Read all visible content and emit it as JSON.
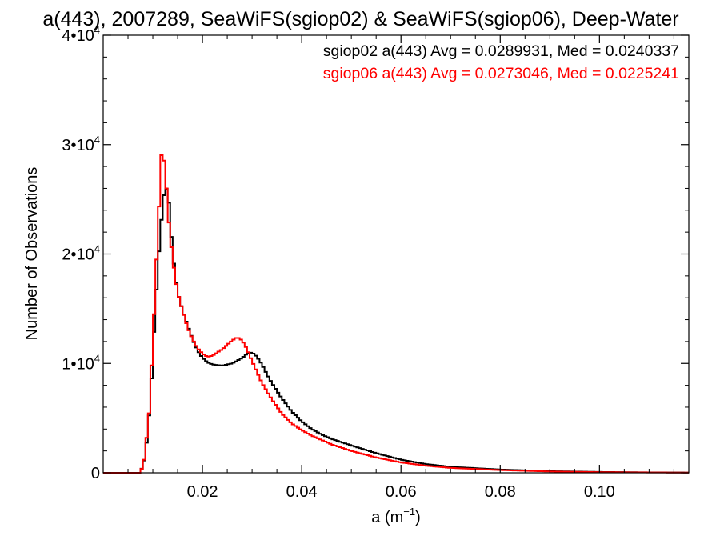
{
  "chart_data": {
    "type": "line",
    "title": "a(443), 2007289, SeaWiFS(sgiop02) & SeaWiFS(sgiop06), Deep-Water",
    "xlabel": {
      "base": "a (m",
      "exp": "−1",
      "close": ")"
    },
    "ylabel": "Number of Observations",
    "xlim": [
      0.0,
      0.118
    ],
    "ylim": [
      0,
      40000
    ],
    "x_ticks": [
      {
        "value": 0.02,
        "label": "0.02"
      },
      {
        "value": 0.04,
        "label": "0.04"
      },
      {
        "value": 0.06,
        "label": "0.06"
      },
      {
        "value": 0.08,
        "label": "0.08"
      },
      {
        "value": 0.1,
        "label": "0.10"
      }
    ],
    "y_ticks": [
      {
        "value": 0,
        "label": "0",
        "mant": "",
        "exp": ""
      },
      {
        "value": 10000,
        "label": "",
        "mant": "1•10",
        "exp": "4"
      },
      {
        "value": 20000,
        "label": "",
        "mant": "2•10",
        "exp": "4"
      },
      {
        "value": 30000,
        "label": "",
        "mant": "3•10",
        "exp": "4"
      },
      {
        "value": 40000,
        "label": "",
        "mant": "4•10",
        "exp": "4"
      }
    ],
    "legend_placement": "top-right",
    "series": [
      {
        "name": "sgiop02",
        "legend": "sgiop02 a(443) Avg = 0.0289931, Med = 0.0240337",
        "color": "#000000",
        "points": [
          [
            0.0,
            0
          ],
          [
            0.0075,
            0
          ],
          [
            0.0085,
            1500
          ],
          [
            0.0095,
            6500
          ],
          [
            0.0105,
            15000
          ],
          [
            0.0115,
            22000
          ],
          [
            0.0125,
            26500
          ],
          [
            0.0132,
            25000
          ],
          [
            0.014,
            20000
          ],
          [
            0.015,
            16500
          ],
          [
            0.016,
            14800
          ],
          [
            0.017,
            13500
          ],
          [
            0.018,
            12200
          ],
          [
            0.019,
            11200
          ],
          [
            0.02,
            10500
          ],
          [
            0.021,
            10100
          ],
          [
            0.022,
            9900
          ],
          [
            0.024,
            9800
          ],
          [
            0.026,
            10000
          ],
          [
            0.028,
            10500
          ],
          [
            0.029,
            10900
          ],
          [
            0.03,
            11000
          ],
          [
            0.031,
            10600
          ],
          [
            0.032,
            9900
          ],
          [
            0.033,
            9000
          ],
          [
            0.034,
            8200
          ],
          [
            0.036,
            6800
          ],
          [
            0.038,
            5600
          ],
          [
            0.04,
            4700
          ],
          [
            0.042,
            4000
          ],
          [
            0.044,
            3500
          ],
          [
            0.046,
            3100
          ],
          [
            0.048,
            2800
          ],
          [
            0.05,
            2500
          ],
          [
            0.055,
            1800
          ],
          [
            0.06,
            1200
          ],
          [
            0.065,
            800
          ],
          [
            0.07,
            550
          ],
          [
            0.08,
            300
          ],
          [
            0.09,
            150
          ],
          [
            0.1,
            80
          ],
          [
            0.11,
            40
          ],
          [
            0.118,
            20
          ]
        ]
      },
      {
        "name": "sgiop06",
        "legend": "sgiop06 a(443) Avg = 0.0273046, Med = 0.0225241",
        "color": "#ff0000",
        "points": [
          [
            0.0,
            0
          ],
          [
            0.0075,
            0
          ],
          [
            0.0082,
            1000
          ],
          [
            0.0092,
            5000
          ],
          [
            0.01,
            12000
          ],
          [
            0.011,
            22000
          ],
          [
            0.0118,
            29500
          ],
          [
            0.0125,
            28000
          ],
          [
            0.013,
            24000
          ],
          [
            0.014,
            19500
          ],
          [
            0.015,
            16500
          ],
          [
            0.016,
            14800
          ],
          [
            0.017,
            13300
          ],
          [
            0.018,
            12200
          ],
          [
            0.019,
            11400
          ],
          [
            0.02,
            10900
          ],
          [
            0.021,
            10600
          ],
          [
            0.022,
            10700
          ],
          [
            0.024,
            11300
          ],
          [
            0.026,
            12100
          ],
          [
            0.027,
            12400
          ],
          [
            0.028,
            12100
          ],
          [
            0.029,
            11300
          ],
          [
            0.03,
            10200
          ],
          [
            0.031,
            9200
          ],
          [
            0.032,
            8200
          ],
          [
            0.034,
            6700
          ],
          [
            0.036,
            5400
          ],
          [
            0.038,
            4500
          ],
          [
            0.04,
            3900
          ],
          [
            0.042,
            3400
          ],
          [
            0.044,
            3000
          ],
          [
            0.046,
            2600
          ],
          [
            0.048,
            2300
          ],
          [
            0.05,
            2000
          ],
          [
            0.055,
            1400
          ],
          [
            0.06,
            950
          ],
          [
            0.065,
            650
          ],
          [
            0.07,
            450
          ],
          [
            0.08,
            250
          ],
          [
            0.09,
            120
          ],
          [
            0.1,
            60
          ],
          [
            0.11,
            30
          ],
          [
            0.118,
            15
          ]
        ]
      }
    ]
  }
}
